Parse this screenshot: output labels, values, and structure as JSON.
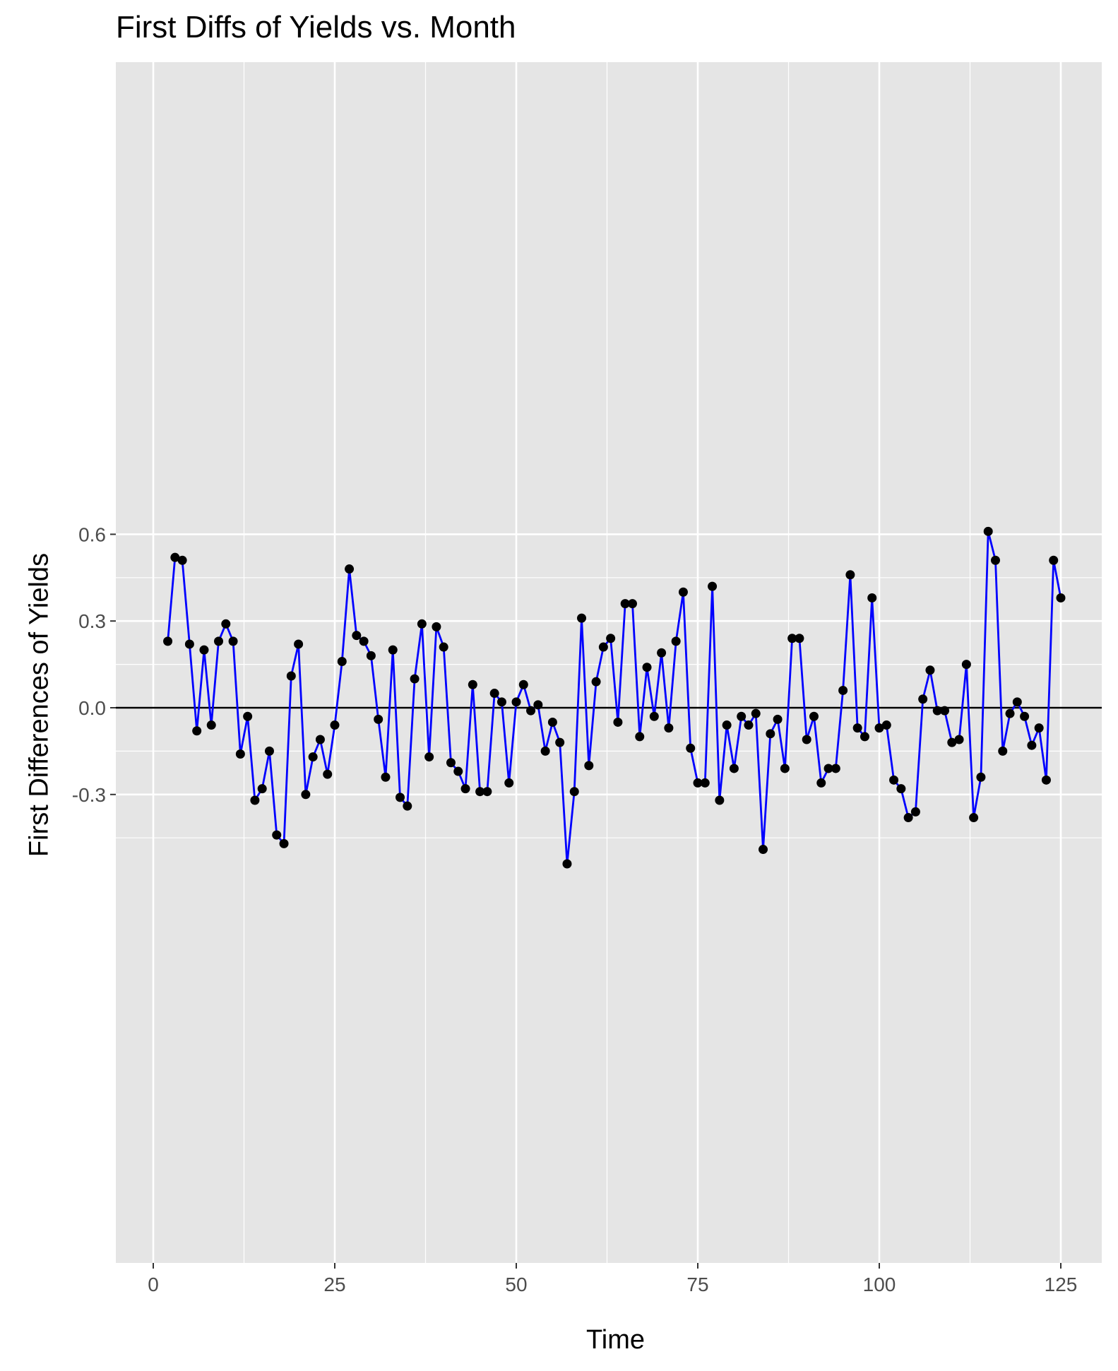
{
  "chart_data": {
    "type": "line",
    "title": "First Diffs of Yields vs. Month",
    "xlabel": "Time",
    "ylabel": "First Differences of Yields",
    "xlim": [
      -5,
      130
    ],
    "ylim": [
      -0.6,
      0.67
    ],
    "xticks": [
      0,
      25,
      50,
      75,
      100,
      125
    ],
    "xtick_labels": [
      "0",
      "25",
      "50",
      "75",
      "100",
      "125"
    ],
    "yticks": [
      -0.3,
      0.0,
      0.3,
      0.6
    ],
    "ytick_labels": [
      "-0.3",
      "0.0",
      "0.3",
      "0.6"
    ],
    "grid": true,
    "hline": 0.0,
    "colors": {
      "line": "#0000ff",
      "points": "#000000",
      "panel": "#e5e5e5",
      "grid": "#ffffff",
      "hline": "#000000"
    },
    "series": [
      {
        "x": [
          2,
          3,
          4,
          5,
          6,
          7,
          8,
          9,
          10,
          11,
          12,
          13,
          14,
          15,
          16,
          17,
          18,
          19,
          20,
          21,
          22,
          23,
          24,
          25,
          26,
          27,
          28,
          29,
          30,
          31,
          32,
          33,
          34,
          35,
          36,
          37,
          38,
          39,
          40,
          41,
          42,
          43,
          44,
          45,
          46,
          47,
          48,
          49,
          50,
          51,
          52,
          53,
          54,
          55,
          56,
          57,
          58,
          59,
          60,
          61,
          62,
          63,
          64,
          65,
          66,
          67,
          68,
          69,
          70,
          71,
          72,
          73,
          74,
          75,
          76,
          77,
          78,
          79,
          80,
          81,
          82,
          83,
          84,
          85,
          86,
          87,
          88,
          89,
          90,
          91,
          92,
          93,
          94,
          95,
          96,
          97,
          98,
          99,
          100,
          101,
          102,
          103,
          104,
          105,
          106,
          107,
          108,
          109,
          110,
          111,
          112,
          113,
          114,
          115,
          116,
          117,
          118,
          119,
          120,
          121,
          122,
          123,
          124,
          125
        ],
        "y": [
          0.23,
          0.52,
          0.51,
          0.22,
          -0.08,
          0.2,
          -0.06,
          0.23,
          0.29,
          0.23,
          -0.16,
          -0.03,
          -0.32,
          -0.28,
          -0.15,
          -0.44,
          -0.47,
          0.11,
          0.22,
          -0.3,
          -0.17,
          -0.11,
          -0.23,
          -0.06,
          0.16,
          0.48,
          0.25,
          0.23,
          0.18,
          -0.04,
          -0.24,
          0.2,
          -0.31,
          -0.34,
          0.1,
          0.29,
          -0.17,
          0.28,
          0.21,
          -0.19,
          -0.22,
          -0.28,
          0.08,
          -0.29,
          -0.29,
          0.05,
          0.02,
          -0.26,
          0.02,
          0.08,
          -0.01,
          0.01,
          -0.15,
          -0.05,
          -0.12,
          -0.54,
          -0.29,
          0.31,
          -0.2,
          0.09,
          0.21,
          0.24,
          -0.05,
          0.36,
          0.36,
          -0.1,
          0.14,
          -0.03,
          0.19,
          -0.07,
          0.23,
          0.4,
          -0.14,
          -0.26,
          -0.26,
          0.42,
          -0.32,
          -0.06,
          -0.21,
          -0.03,
          -0.06,
          -0.02,
          -0.49,
          -0.09,
          -0.04,
          -0.21,
          0.24,
          0.24,
          -0.11,
          -0.03,
          -0.26,
          -0.21,
          -0.21,
          0.06,
          0.46,
          -0.07,
          -0.1,
          0.38,
          -0.07,
          -0.06,
          -0.25,
          -0.28,
          -0.38,
          -0.36,
          0.03,
          0.13,
          -0.01,
          -0.01,
          -0.12,
          -0.11,
          0.15,
          -0.38,
          -0.24,
          0.61,
          0.51,
          -0.15,
          -0.02,
          0.02,
          -0.03,
          -0.13,
          -0.07,
          -0.25,
          0.51,
          0.38
        ]
      }
    ]
  }
}
